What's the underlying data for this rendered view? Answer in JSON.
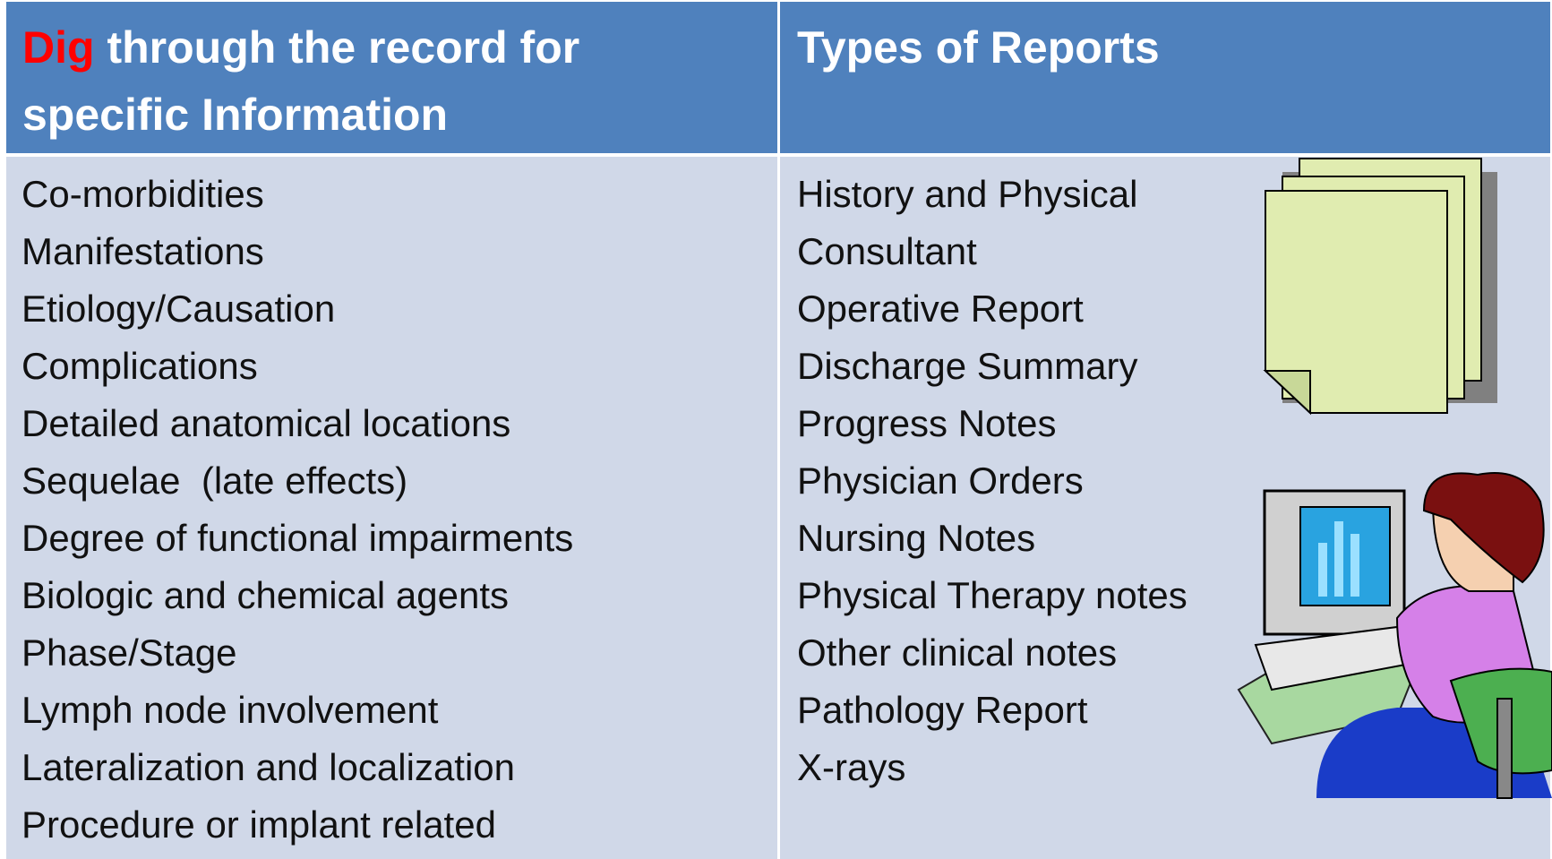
{
  "table": {
    "headers": [
      {
        "highlight": "Dig",
        "rest": "through the record for specific Information"
      },
      {
        "text": "Types of Reports"
      }
    ],
    "columns": [
      [
        "Co-morbidities",
        "Manifestations",
        "Etiology/Causation",
        "Complications",
        "Detailed anatomical locations",
        "Sequelae  (late effects)",
        "Degree of functional impairments",
        "Biologic and chemical agents",
        "Phase/Stage",
        "Lymph node involvement",
        "Lateralization and localization",
        "Procedure or implant related"
      ],
      [
        "History and Physical",
        "Consultant",
        "Operative Report",
        "Discharge Summary",
        "Progress Notes",
        "Physician Orders",
        "Nursing Notes",
        "Physical Therapy notes",
        "Other clinical notes",
        "Pathology Report",
        "X-rays"
      ]
    ]
  }
}
